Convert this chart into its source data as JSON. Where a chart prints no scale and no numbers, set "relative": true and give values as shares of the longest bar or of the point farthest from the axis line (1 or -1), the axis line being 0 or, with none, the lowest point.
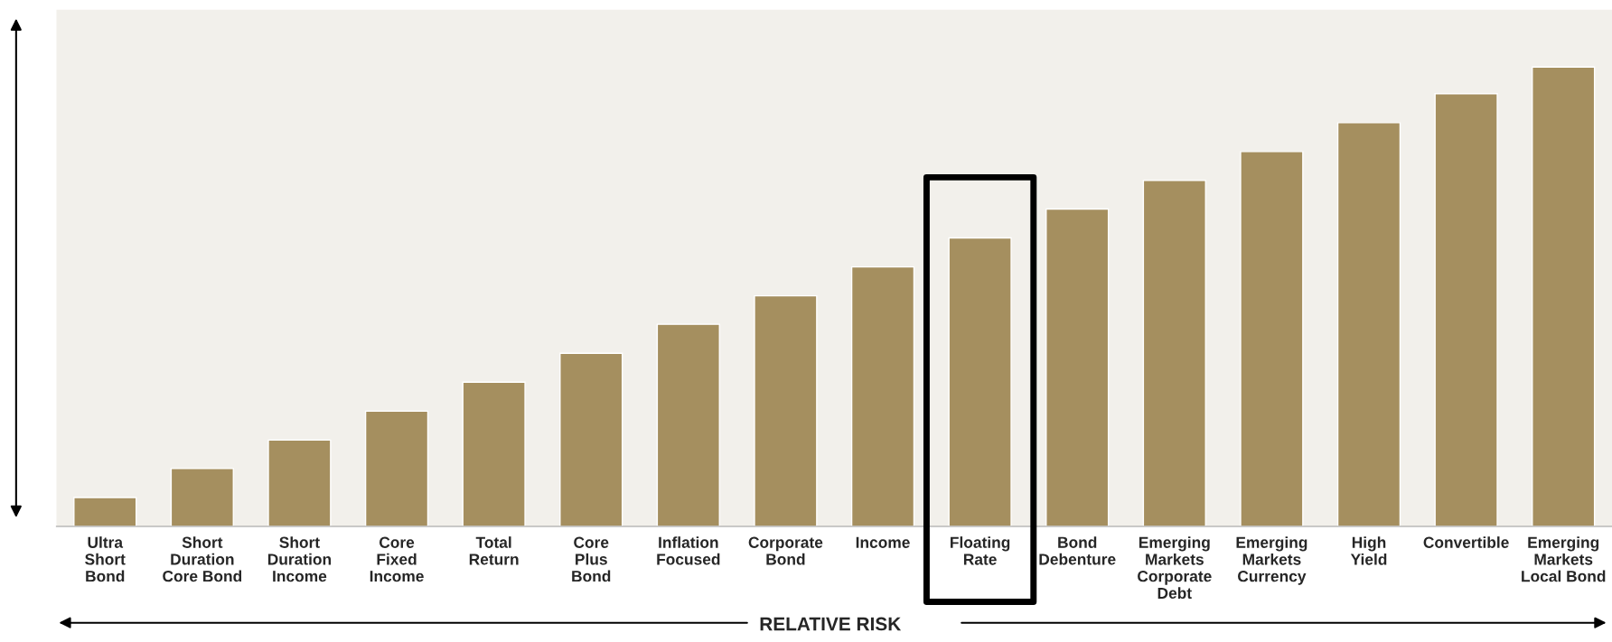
{
  "chart_data": {
    "type": "bar",
    "relative": true,
    "color": "#a58f5f",
    "categories": [
      "Ultra\nShort\nBond",
      "Short\nDuration\nCore Bond",
      "Short\nDuration\nIncome",
      "Core\nFixed\nIncome",
      "Total\nReturn",
      "Core\nPlus\nBond",
      "Inflation\nFocused",
      "Corporate\nBond",
      "Income",
      "Floating\nRate",
      "Bond\nDebenture",
      "Emerging\nMarkets\nCorporate\nDebt",
      "Emerging\nMarkets\nCurrency",
      "High\nYield",
      "Convertible",
      "Emerging\nMarkets\nLocal Bond"
    ],
    "values": [
      0.063,
      0.126,
      0.188,
      0.251,
      0.314,
      0.377,
      0.44,
      0.502,
      0.565,
      0.628,
      0.691,
      0.753,
      0.816,
      0.879,
      0.942,
      1
    ],
    "annotations": [
      "RELATIVE RISK"
    ],
    "grid": false
  }
}
